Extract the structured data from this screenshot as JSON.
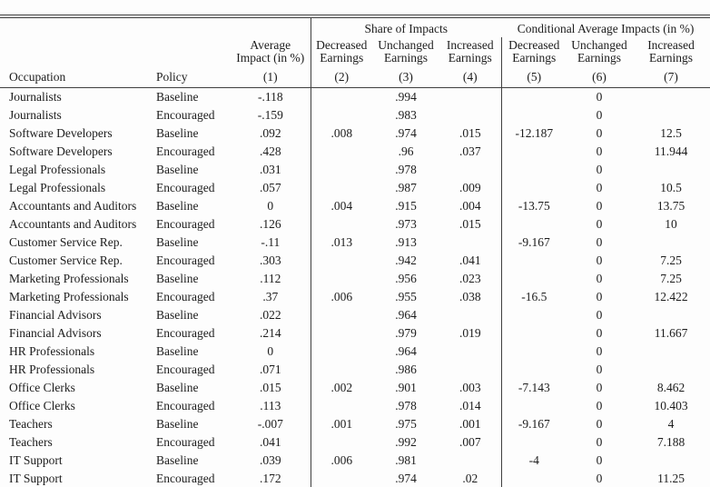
{
  "table": {
    "groups": {
      "share": "Share of Impacts",
      "conditional": "Conditional Average Impacts (in %)"
    },
    "headers": {
      "occupation": "Occupation",
      "policy": "Policy",
      "avg_line1": "Average",
      "avg_line2": "Impact (in %)",
      "decreased": "Decreased",
      "unchanged": "Unchanged",
      "increased": "Increased",
      "earnings": "Earnings",
      "nums": [
        "(1)",
        "(2)",
        "(3)",
        "(4)",
        "(5)",
        "(6)",
        "(7)"
      ]
    },
    "col_ids": [
      "occupation",
      "policy",
      "avg-impact",
      "share-decreased",
      "share-unchanged",
      "share-increased",
      "cond-decreased",
      "cond-unchanged",
      "cond-increased"
    ],
    "rows": [
      [
        "Journalists",
        "Baseline",
        "-.118",
        "",
        ".994",
        "",
        "",
        "0",
        ""
      ],
      [
        "Journalists",
        "Encouraged",
        "-.159",
        "",
        ".983",
        "",
        "",
        "0",
        ""
      ],
      [
        "Software Developers",
        "Baseline",
        ".092",
        ".008",
        ".974",
        ".015",
        "-12.187",
        "0",
        "12.5"
      ],
      [
        "Software Developers",
        "Encouraged",
        ".428",
        "",
        ".96",
        ".037",
        "",
        "0",
        "11.944"
      ],
      [
        "Legal Professionals",
        "Baseline",
        ".031",
        "",
        ".978",
        "",
        "",
        "0",
        ""
      ],
      [
        "Legal Professionals",
        "Encouraged",
        ".057",
        "",
        ".987",
        ".009",
        "",
        "0",
        "10.5"
      ],
      [
        "Accountants and Auditors",
        "Baseline",
        "0",
        ".004",
        ".915",
        ".004",
        "-13.75",
        "0",
        "13.75"
      ],
      [
        "Accountants and Auditors",
        "Encouraged",
        ".126",
        "",
        ".973",
        ".015",
        "",
        "0",
        "10"
      ],
      [
        "Customer Service Rep.",
        "Baseline",
        "-.11",
        ".013",
        ".913",
        "",
        "-9.167",
        "0",
        ""
      ],
      [
        "Customer Service Rep.",
        "Encouraged",
        ".303",
        "",
        ".942",
        ".041",
        "",
        "0",
        "7.25"
      ],
      [
        "Marketing Professionals",
        "Baseline",
        ".112",
        "",
        ".956",
        ".023",
        "",
        "0",
        "7.25"
      ],
      [
        "Marketing Professionals",
        "Encouraged",
        ".37",
        ".006",
        ".955",
        ".038",
        "-16.5",
        "0",
        "12.422"
      ],
      [
        "Financial Advisors",
        "Baseline",
        ".022",
        "",
        ".964",
        "",
        "",
        "0",
        ""
      ],
      [
        "Financial Advisors",
        "Encouraged",
        ".214",
        "",
        ".979",
        ".019",
        "",
        "0",
        "11.667"
      ],
      [
        "HR Professionals",
        "Baseline",
        "0",
        "",
        ".964",
        "",
        "",
        "0",
        ""
      ],
      [
        "HR Professionals",
        "Encouraged",
        ".071",
        "",
        ".986",
        "",
        "",
        "0",
        ""
      ],
      [
        "Office Clerks",
        "Baseline",
        ".015",
        ".002",
        ".901",
        ".003",
        "-7.143",
        "0",
        "8.462"
      ],
      [
        "Office Clerks",
        "Encouraged",
        ".113",
        "",
        ".978",
        ".014",
        "",
        "0",
        "10.403"
      ],
      [
        "Teachers",
        "Baseline",
        "-.007",
        ".001",
        ".975",
        ".001",
        "-9.167",
        "0",
        "4"
      ],
      [
        "Teachers",
        "Encouraged",
        ".041",
        "",
        ".992",
        ".007",
        "",
        "0",
        "7.188"
      ],
      [
        "IT Support",
        "Baseline",
        ".039",
        ".006",
        ".981",
        "",
        "-4",
        "0",
        ""
      ],
      [
        "IT Support",
        "Encouraged",
        ".172",
        "",
        ".974",
        ".02",
        "",
        "0",
        "11.25"
      ]
    ]
  }
}
